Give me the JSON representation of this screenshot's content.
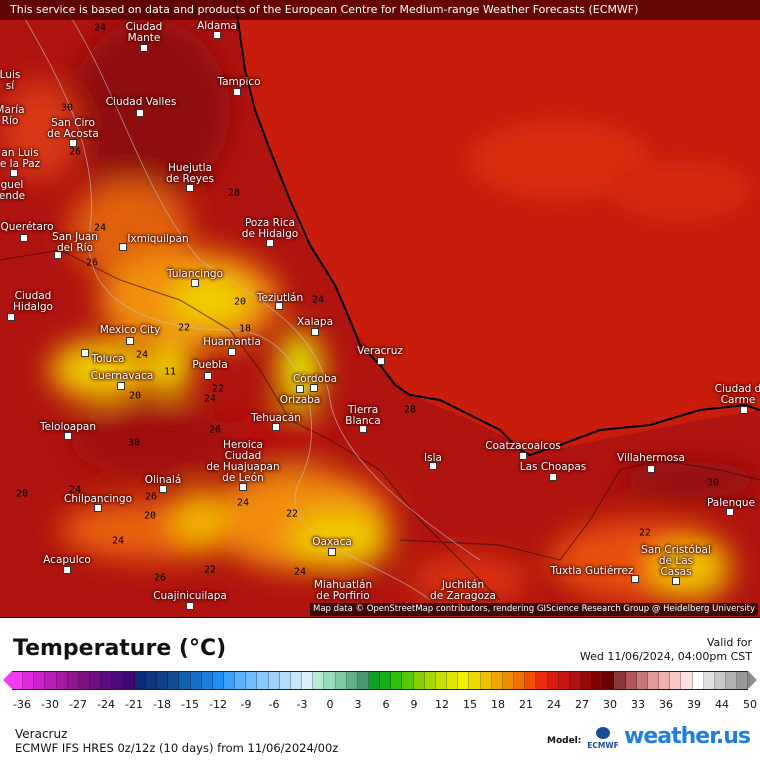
{
  "banner": "This service is based on data and products of the European Centre for Medium-range Weather Forecasts (ECMWF)",
  "attribution": "Map data © OpenStreetMap contributors, rendering GIScience Research Group @ Heidelberg University",
  "cities": [
    "Aldama",
    "Ciudad\nMante",
    "Tampico",
    "Ciudad Valles",
    "San Ciro\nde Acosta",
    "Luis\nsí",
    "María\nRío",
    "an Luis\ne la Paz",
    "guel\nende",
    "Huejutla\nde Reyes",
    "Querétaro",
    "San Juan\ndel Río",
    "Ixmiquilpan",
    "Poza Rica\nde Hidalgo",
    "Tulancingo",
    "Ciudad\nHidalgo",
    "Teziutlán",
    "Xalapa",
    "Mexico City",
    "Huamantla",
    "Toluca",
    "Puebla",
    "Cuernavaca",
    "Córdoba",
    "Orizaba",
    "Veracruz",
    "Tierra\nBlanca",
    "Tehuacán",
    "Teloloapan",
    "Heroica\nCiudad\nde Huajuapan\nde León",
    "Isla",
    "Coatzacoalcos",
    "Las Choapas",
    "Villahermosa",
    "Ciudad d\nCarme",
    "Olinalá",
    "Chilpancingo",
    "Palenque",
    "Oaxaca",
    "San Cristóbal\nde Las\nCasas",
    "Acapulco",
    "Tuxtla Gutiérrez",
    "Juchitán\nde Zaragoza",
    "Miahuatlán\nde Porfirio",
    "Cuajinicuilapa"
  ],
  "contour_labels": [
    "24",
    "30",
    "26",
    "24",
    "26",
    "28",
    "20",
    "24",
    "22",
    "18",
    "24",
    "20",
    "11",
    "22",
    "24",
    "30",
    "26",
    "24",
    "26",
    "20",
    "24",
    "22",
    "26",
    "28",
    "20",
    "24",
    "30",
    "22",
    "22",
    "24"
  ],
  "legend": {
    "title": "Temperature (°C)",
    "valid_label": "Valid for",
    "valid_time": "Wed 11/06/2024, 04:00pm CST",
    "ticks": [
      "-36",
      "-30",
      "-27",
      "-24",
      "-21",
      "-18",
      "-15",
      "-12",
      "-9",
      "-6",
      "-3",
      "0",
      "3",
      "6",
      "9",
      "12",
      "15",
      "18",
      "21",
      "24",
      "27",
      "30",
      "33",
      "36",
      "39",
      "44",
      "50"
    ],
    "colors": [
      "#f23cf0",
      "#e12ae0",
      "#cc22cc",
      "#b81db8",
      "#a319a3",
      "#921592",
      "#801280",
      "#6e0f86",
      "#5c0c82",
      "#4d0a7a",
      "#3f0872",
      "#0c2a7a",
      "#0e3582",
      "#10408a",
      "#124c94",
      "#1460b0",
      "#1670c8",
      "#1880e0",
      "#1e90f0",
      "#3ca0f8",
      "#5ab0fa",
      "#70bcfa",
      "#88c8fa",
      "#9ed2fa",
      "#b4dcfa",
      "#c8e6fa",
      "#daf0fa",
      "#b8e8d0",
      "#98dcbc",
      "#80c8a0",
      "#60b088",
      "#489870",
      "#10a028",
      "#18b018",
      "#30c010",
      "#58c808",
      "#88d000",
      "#a8d800",
      "#c8e000",
      "#e0e800",
      "#f0f000",
      "#f0d800",
      "#f0c000",
      "#f0a800",
      "#f08c00",
      "#f07000",
      "#f05000",
      "#e83010",
      "#d81c10",
      "#c81414",
      "#b01010",
      "#980808",
      "#800404",
      "#680000",
      "#8c3838",
      "#b05858",
      "#c87878",
      "#e09898",
      "#f0b0b0",
      "#f8c8c8",
      "#fce0e0",
      "#ffffff",
      "#e0e0e0",
      "#c8c8c8",
      "#b0b0b0",
      "#989898"
    ],
    "region": "Veracruz",
    "model_run": "ECMWF IFS HRES 0z/12z (10 days) from  11/06/2024/00z",
    "model_label": "Model:",
    "model_name": "ECMWF",
    "brand": "weather.us"
  }
}
